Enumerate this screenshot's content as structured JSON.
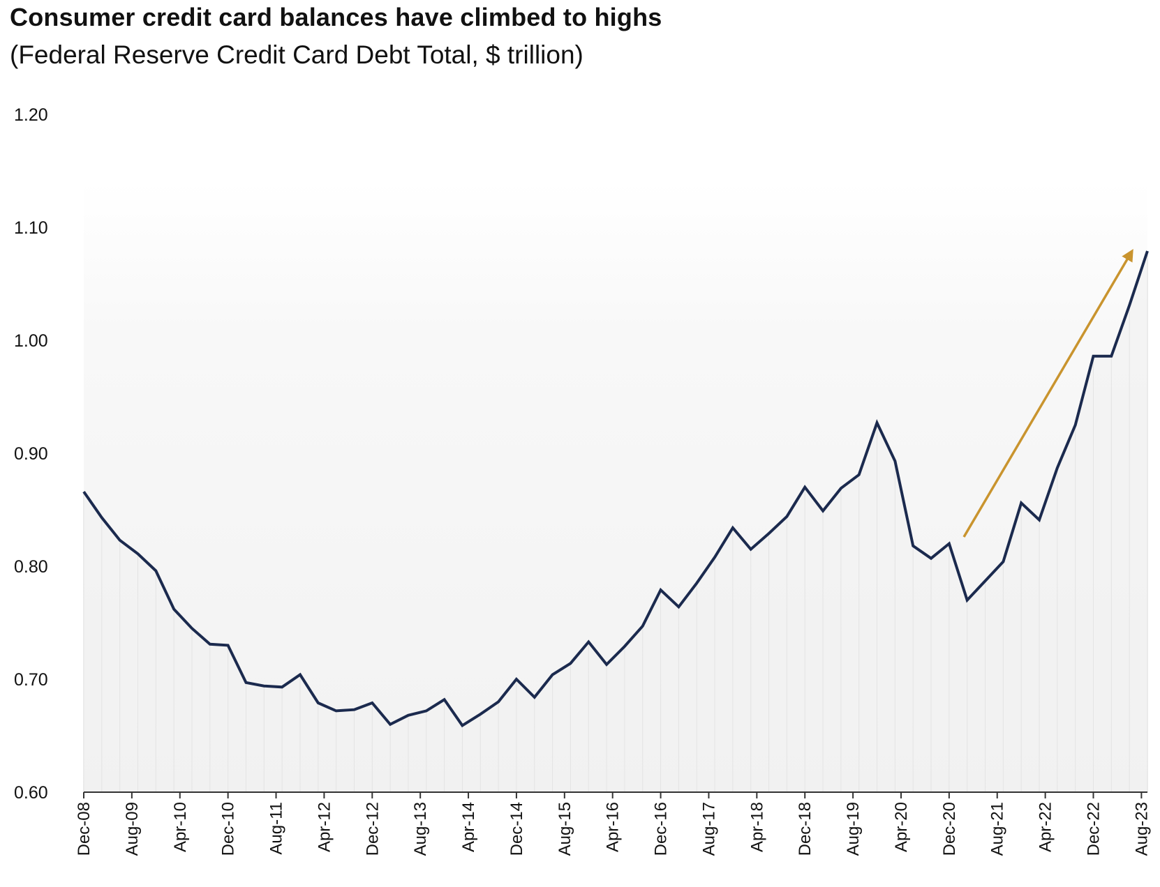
{
  "chart_data": {
    "type": "line",
    "title": "Consumer credit card balances have climbed to highs",
    "subtitle": "(Federal Reserve Credit Card Debt Total, $ trillion)",
    "ylim": [
      0.6,
      1.2
    ],
    "y_ticks": [
      "1.20",
      "1.10",
      "1.00",
      "0.90",
      "0.80",
      "0.70",
      "0.60"
    ],
    "x_ticks": [
      "Dec-08",
      "Aug-09",
      "Apr-10",
      "Dec-10",
      "Aug-11",
      "Apr-12",
      "Dec-12",
      "Aug-13",
      "Apr-14",
      "Dec-14",
      "Aug-15",
      "Apr-16",
      "Dec-16",
      "Aug-17",
      "Apr-18",
      "Dec-18",
      "Aug-19",
      "Apr-20",
      "Dec-20",
      "Aug-21",
      "Apr-22",
      "Dec-22",
      "Aug-23"
    ],
    "series": [
      {
        "color": "#1b2a4e",
        "values": [
          0.866,
          0.843,
          0.823,
          0.811,
          0.796,
          0.762,
          0.745,
          0.731,
          0.73,
          0.697,
          0.694,
          0.693,
          0.704,
          0.679,
          0.672,
          0.673,
          0.679,
          0.66,
          0.668,
          0.672,
          0.682,
          0.659,
          0.669,
          0.68,
          0.7,
          0.684,
          0.704,
          0.714,
          0.733,
          0.713,
          0.729,
          0.747,
          0.779,
          0.764,
          0.785,
          0.808,
          0.834,
          0.815,
          0.829,
          0.844,
          0.87,
          0.849,
          0.869,
          0.881,
          0.927,
          0.893,
          0.818,
          0.807,
          0.82,
          0.77,
          0.787,
          0.804,
          0.856,
          0.841,
          0.887,
          0.925,
          0.986,
          0.986,
          1.031,
          1.079
        ]
      }
    ],
    "trend_arrow_color": "#c9942e",
    "area_fill": "#f1f1f1",
    "grid": false
  }
}
